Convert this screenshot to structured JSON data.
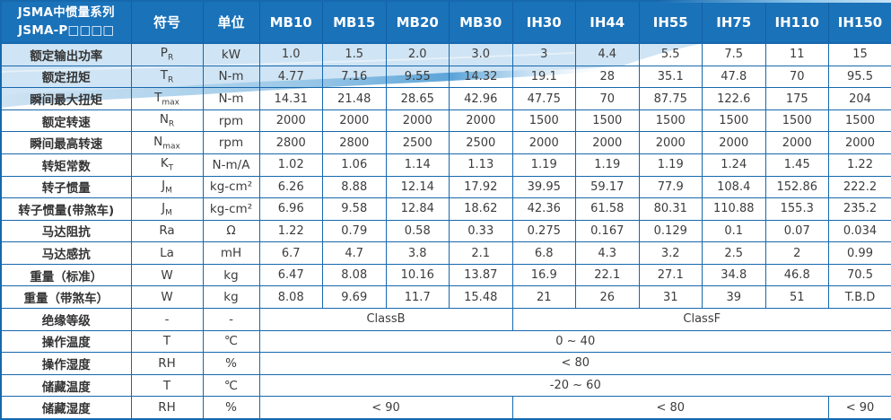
{
  "header": {
    "title_line1": "JSMA中惯量系列",
    "title_line2": "JSMA-P□□□□",
    "symbol_col": "符号",
    "unit_col": "单位",
    "models": [
      "MB10",
      "MB15",
      "MB20",
      "MB30",
      "IH30",
      "IH44",
      "IH55",
      "IH75",
      "IH110",
      "IH150"
    ]
  },
  "rows": [
    {
      "label": "额定输出功率",
      "sym": "P",
      "sub": "R",
      "unit": "kW",
      "values": [
        "1.0",
        "1.5",
        "2.0",
        "3.0",
        "3",
        "4.4",
        "5.5",
        "7.5",
        "11",
        "15"
      ]
    },
    {
      "label": "额定扭矩",
      "sym": "T",
      "sub": "R",
      "unit": "N-m",
      "values": [
        "4.77",
        "7.16",
        "9.55",
        "14.32",
        "19.1",
        "28",
        "35.1",
        "47.8",
        "70",
        "95.5"
      ]
    },
    {
      "label": "瞬间最大扭矩",
      "sym": "T",
      "sub": "max",
      "unit": "N-m",
      "values": [
        "14.31",
        "21.48",
        "28.65",
        "42.96",
        "47.75",
        "70",
        "87.75",
        "122.6",
        "175",
        "204"
      ]
    },
    {
      "label": "额定转速",
      "sym": "N",
      "sub": "R",
      "unit": "rpm",
      "values": [
        "2000",
        "2000",
        "2000",
        "2000",
        "1500",
        "1500",
        "1500",
        "1500",
        "1500",
        "1500"
      ]
    },
    {
      "label": "瞬间最高转速",
      "sym": "N",
      "sub": "max",
      "unit": "rpm",
      "values": [
        "2800",
        "2800",
        "2500",
        "2500",
        "2000",
        "2000",
        "2000",
        "2000",
        "2000",
        "2000"
      ]
    },
    {
      "label": "转矩常数",
      "sym": "K",
      "sub": "T",
      "unit": "N-m/A",
      "values": [
        "1.02",
        "1.06",
        "1.14",
        "1.13",
        "1.19",
        "1.19",
        "1.19",
        "1.24",
        "1.45",
        "1.22"
      ]
    },
    {
      "label": "转子惯量",
      "sym": "J",
      "sub": "M",
      "unit": "kg-cm²",
      "values": [
        "6.26",
        "8.88",
        "12.14",
        "17.92",
        "39.95",
        "59.17",
        "77.9",
        "108.4",
        "152.86",
        "222.2"
      ]
    },
    {
      "label": "转子惯量(带煞车)",
      "sym": "J",
      "sub": "M",
      "unit": "kg-cm²",
      "values": [
        "6.96",
        "9.58",
        "12.84",
        "18.62",
        "42.36",
        "61.58",
        "80.31",
        "110.88",
        "155.3",
        "235.2"
      ]
    },
    {
      "label": "马达阻抗",
      "sym": "Ra",
      "sub": "",
      "unit": "Ω",
      "values": [
        "1.22",
        "0.79",
        "0.58",
        "0.33",
        "0.275",
        "0.167",
        "0.129",
        "0.1",
        "0.07",
        "0.034"
      ]
    },
    {
      "label": "马达感抗",
      "sym": "La",
      "sub": "",
      "unit": "mH",
      "values": [
        "6.7",
        "4.7",
        "3.8",
        "2.1",
        "6.8",
        "4.3",
        "3.2",
        "2.5",
        "2",
        "0.99"
      ]
    },
    {
      "label": "重量（标准）",
      "sym": "W",
      "sub": "",
      "unit": "kg",
      "values": [
        "6.47",
        "8.08",
        "10.16",
        "13.87",
        "16.9",
        "22.1",
        "27.1",
        "34.8",
        "46.8",
        "70.5"
      ]
    },
    {
      "label": "重量（带煞车）",
      "sym": "W",
      "sub": "",
      "unit": "kg",
      "values": [
        "8.08",
        "9.69",
        "11.7",
        "15.48",
        "21",
        "26",
        "31",
        "39",
        "51",
        "T.B.D"
      ]
    },
    {
      "label": "绝缘等级",
      "sym": "-",
      "sub": "",
      "unit": "-",
      "spans": [
        {
          "text": "ClassB",
          "cols": 4
        },
        {
          "text": "ClassF",
          "cols": 6
        }
      ]
    },
    {
      "label": "操作温度",
      "sym": "T",
      "sub": "",
      "unit": "℃",
      "spans": [
        {
          "text": "0 ~ 40",
          "cols": 10
        }
      ]
    },
    {
      "label": "操作湿度",
      "sym": "RH",
      "sub": "",
      "unit": "%",
      "spans": [
        {
          "text": "< 80",
          "cols": 10
        }
      ]
    },
    {
      "label": "储藏温度",
      "sym": "T",
      "sub": "",
      "unit": "℃",
      "spans": [
        {
          "text": "-20 ~ 60",
          "cols": 10
        }
      ]
    },
    {
      "label": "储藏湿度",
      "sym": "RH",
      "sub": "",
      "unit": "%",
      "spans": [
        {
          "text": "< 90",
          "cols": 4
        },
        {
          "text": "< 80",
          "cols": 5
        },
        {
          "text": "< 90",
          "cols": 1
        }
      ]
    }
  ],
  "colors": {
    "header_bg": "#1a72b9",
    "header_border": "#1260a5",
    "grid": "#1668ad",
    "row_label_text": "#333333",
    "value_text": "#3c3c3c",
    "wave_light": "#c3ddf1",
    "wave_mid": "#58a3d8"
  }
}
